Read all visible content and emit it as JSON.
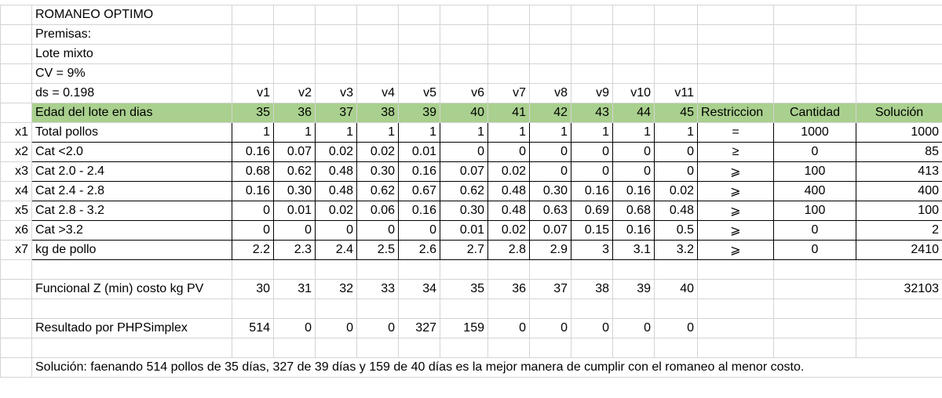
{
  "title_rows": [
    "ROMANEO OPTIMO",
    "Premisas:",
    "Lote mixto",
    "CV = 9%",
    "ds = 0.198"
  ],
  "variables": [
    "v1",
    "v2",
    "v3",
    "v4",
    "v5",
    "v6",
    "v7",
    "v8",
    "v9",
    "v10",
    "v11"
  ],
  "header": {
    "label": "Edad del lote en dias",
    "ages": [
      "35",
      "36",
      "37",
      "38",
      "39",
      "40",
      "41",
      "42",
      "43",
      "44",
      "45"
    ],
    "restriction": "Restriccion",
    "quantity": "Cantidad",
    "solution": "Solución"
  },
  "constraints": [
    {
      "var": "x1",
      "label": "Total pollos",
      "coefficients": [
        "1",
        "1",
        "1",
        "1",
        "1",
        "1",
        "1",
        "1",
        "1",
        "1",
        "1"
      ],
      "sign": "=",
      "quantity": "1000",
      "solution": "1000"
    },
    {
      "var": "x2",
      "label": "Cat <2.0",
      "coefficients": [
        "0.16",
        "0.07",
        "0.02",
        "0.02",
        "0.01",
        "0",
        "0",
        "0",
        "0",
        "0",
        "0"
      ],
      "sign": "≥",
      "quantity": "0",
      "solution": "85"
    },
    {
      "var": "x3",
      "label": "Cat 2.0 - 2.4",
      "coefficients": [
        "0.68",
        "0.62",
        "0.48",
        "0.30",
        "0.16",
        "0.07",
        "0.02",
        "0",
        "0",
        "0",
        "0"
      ],
      "sign": "⩾",
      "quantity": "100",
      "solution": "413"
    },
    {
      "var": "x4",
      "label": "Cat 2.4 - 2.8",
      "coefficients": [
        "0.16",
        "0.30",
        "0.48",
        "0.62",
        "0.67",
        "0.62",
        "0.48",
        "0.30",
        "0.16",
        "0.16",
        "0.02"
      ],
      "sign": "⩾",
      "quantity": "400",
      "solution": "400"
    },
    {
      "var": "x5",
      "label": "Cat 2.8 - 3.2",
      "coefficients": [
        "0",
        "0.01",
        "0.02",
        "0.06",
        "0.16",
        "0.30",
        "0.48",
        "0.63",
        "0.69",
        "0.68",
        "0.48"
      ],
      "sign": "⩾",
      "quantity": "100",
      "solution": "100"
    },
    {
      "var": "x6",
      "label": "Cat >3.2",
      "coefficients": [
        "0",
        "0",
        "0",
        "0",
        "0",
        "0.01",
        "0.02",
        "0.07",
        "0.15",
        "0.16",
        "0.5"
      ],
      "sign": "⩾",
      "quantity": "0",
      "solution": "2"
    },
    {
      "var": "x7",
      "label": "kg de pollo",
      "coefficients": [
        "2.2",
        "2.3",
        "2.4",
        "2.5",
        "2.6",
        "2.7",
        "2.8",
        "2.9",
        "3",
        "3.1",
        "3.2"
      ],
      "sign": "⩾",
      "quantity": "0",
      "solution": "2410"
    }
  ],
  "objective": {
    "label": "Funcional Z (min) costo kg PV",
    "coefficients": [
      "30",
      "31",
      "32",
      "33",
      "34",
      "35",
      "36",
      "37",
      "38",
      "39",
      "40"
    ],
    "solution": "32103"
  },
  "result": {
    "label": "Resultado por PHPSimplex",
    "values": [
      "514",
      "0",
      "0",
      "0",
      "327",
      "159",
      "0",
      "0",
      "0",
      "0",
      "0"
    ]
  },
  "conclusion": "Solución: faenando 514 pollos de 35 días, 327 de 39 días y 159 de 40 días es la mejor manera de cumplir con el romaneo al menor costo."
}
